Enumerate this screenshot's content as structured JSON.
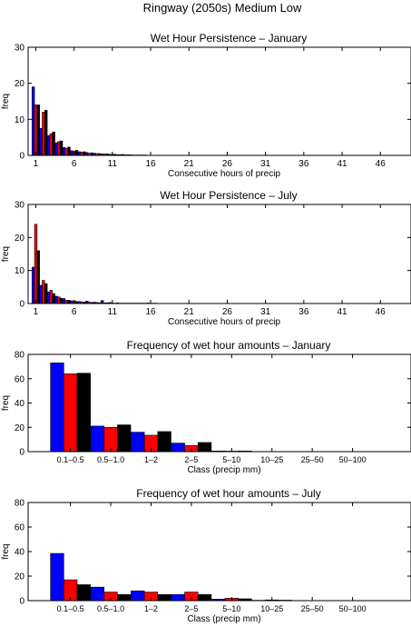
{
  "figure": {
    "suptitle": "Ringway (2050s) Medium Low"
  },
  "series_colors": [
    "#0000ff",
    "#ff0000",
    "#000000"
  ],
  "chart_data": [
    {
      "type": "bar",
      "title": "Wet Hour Persistence – January",
      "xlabel": "Consecutive hours of precip",
      "ylabel": "freq",
      "xlim": [
        0,
        50
      ],
      "ylim": [
        0,
        30
      ],
      "xticks": [
        1,
        6,
        11,
        16,
        21,
        26,
        31,
        36,
        41,
        46
      ],
      "yticks": [
        0,
        10,
        20,
        30
      ],
      "x": [
        1,
        2,
        3,
        4,
        5,
        6,
        7,
        8,
        9,
        10,
        11,
        12,
        13,
        14,
        15,
        16
      ],
      "series": [
        {
          "values": [
            19,
            7.5,
            5.5,
            3.5,
            2.2,
            1.3,
            1.0,
            0.8,
            0.6,
            0.4,
            0.3,
            0.2,
            0.15,
            0.1,
            0.1,
            0.05
          ]
        },
        {
          "values": [
            14,
            12,
            6,
            3.8,
            2.0,
            1.2,
            0.9,
            0.6,
            0.5,
            0.4,
            0.3,
            0.2,
            0.15,
            0.1,
            0.1,
            0.05
          ]
        },
        {
          "values": [
            14,
            12.5,
            6.5,
            4.0,
            2.3,
            1.4,
            1.0,
            0.7,
            0.5,
            0.4,
            0.3,
            0.25,
            0.15,
            0.1,
            0.1,
            0.05
          ]
        }
      ]
    },
    {
      "type": "bar",
      "title": "Wet Hour Persistence – July",
      "xlabel": "Consecutive hours of precip",
      "ylabel": "freq",
      "xlim": [
        0,
        50
      ],
      "ylim": [
        0,
        30
      ],
      "xticks": [
        1,
        6,
        11,
        16,
        21,
        26,
        31,
        36,
        41,
        46
      ],
      "yticks": [
        0,
        10,
        20,
        30
      ],
      "x": [
        1,
        2,
        3,
        4,
        5,
        6,
        7,
        8,
        9,
        10,
        11,
        12,
        13,
        14,
        15,
        16,
        17,
        18
      ],
      "series": [
        {
          "values": [
            11,
            5.5,
            3.5,
            2.2,
            1.5,
            0.8,
            0.6,
            0.7,
            0.4,
            0.9,
            0.3,
            0.2,
            0.1,
            0.1,
            0.1,
            0.15,
            0.1,
            0.05
          ]
        },
        {
          "values": [
            24,
            7,
            4,
            2,
            1.0,
            0.8,
            0.5,
            0.4,
            0.3,
            0.2,
            0.15,
            0.1,
            0.1,
            0.1,
            0.1,
            0.05,
            0.05,
            0.05
          ]
        },
        {
          "values": [
            16,
            6,
            3,
            1.6,
            1.0,
            0.6,
            0.4,
            0.3,
            0.2,
            0.2,
            0.1,
            0.1,
            0.1,
            0.1,
            0.1,
            0.1,
            0.05,
            0.05
          ]
        }
      ]
    },
    {
      "type": "bar",
      "title": "Frequency of wet hour amounts – January",
      "xlabel": "Class (precip mm)",
      "ylabel": "freq",
      "ylim": [
        0,
        80
      ],
      "yticks": [
        0,
        20,
        40,
        60,
        80
      ],
      "categories": [
        "0.1–0.5",
        "0.5–1.0",
        "1–2",
        "2–5",
        "5–10",
        "10–25",
        "25–50",
        "50–100"
      ],
      "series": [
        {
          "values": [
            73,
            21,
            16,
            7,
            0.5,
            0,
            0,
            0
          ]
        },
        {
          "values": [
            64,
            20,
            13.5,
            5,
            0.4,
            0,
            0,
            0
          ]
        },
        {
          "values": [
            64.5,
            22,
            16.5,
            7.5,
            0.5,
            0,
            0,
            0
          ]
        }
      ]
    },
    {
      "type": "bar",
      "title": "Frequency of wet hour amounts – July",
      "xlabel": "Class (precip mm)",
      "ylabel": "freq",
      "ylim": [
        0,
        80
      ],
      "yticks": [
        0,
        20,
        40,
        60,
        80
      ],
      "categories": [
        "0.1–0.5",
        "0.5–1.0",
        "1–2",
        "2–5",
        "5–10",
        "10–25",
        "25–50",
        "50–100"
      ],
      "series": [
        {
          "values": [
            38.5,
            11,
            8,
            5,
            1.2,
            0.3,
            0,
            0
          ]
        },
        {
          "values": [
            17,
            7,
            7,
            7,
            2,
            0.6,
            0,
            0
          ]
        },
        {
          "values": [
            13,
            5,
            5,
            5,
            1.5,
            0.4,
            0,
            0
          ]
        }
      ]
    }
  ]
}
